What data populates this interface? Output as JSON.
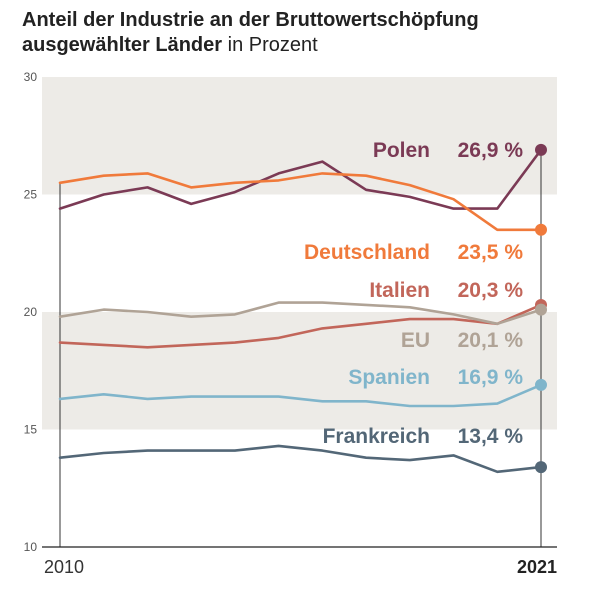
{
  "chart_data": {
    "type": "line",
    "title": "Anteil der Industrie an der Bruttowertschöpfung ausgewählter Länder",
    "subtitle": "in Prozent",
    "x": [
      2010,
      2011,
      2012,
      2013,
      2014,
      2015,
      2016,
      2017,
      2018,
      2019,
      2020,
      2021
    ],
    "x_tick_labels": [
      "2010",
      "2021"
    ],
    "ylim": [
      10,
      30
    ],
    "y_ticks": [
      30,
      25,
      20,
      15,
      10
    ],
    "grid": true,
    "shaded_bands": [
      [
        25,
        30
      ],
      [
        15,
        20
      ]
    ],
    "band_color": "#edebe7",
    "legend_position": "right",
    "series": [
      {
        "name": "Polen",
        "end_label": "26,9 %",
        "color": "#7b3a55",
        "values": [
          24.4,
          25.0,
          25.3,
          24.6,
          25.1,
          25.9,
          26.4,
          25.2,
          24.9,
          24.4,
          24.4,
          26.9
        ]
      },
      {
        "name": "Deutschland",
        "end_label": "23,5 %",
        "color": "#f07a3b",
        "values": [
          25.5,
          25.8,
          25.9,
          25.3,
          25.5,
          25.6,
          25.9,
          25.8,
          25.4,
          24.8,
          23.5,
          23.5
        ]
      },
      {
        "name": "Italien",
        "end_label": "20,3 %",
        "color": "#c2665a",
        "values": [
          18.7,
          18.6,
          18.5,
          18.6,
          18.7,
          18.9,
          19.3,
          19.5,
          19.7,
          19.7,
          19.5,
          20.3
        ]
      },
      {
        "name": "EU",
        "end_label": "20,1 %",
        "color": "#b0a396",
        "values": [
          19.8,
          20.1,
          20.0,
          19.8,
          19.9,
          20.4,
          20.4,
          20.3,
          20.2,
          19.9,
          19.5,
          20.1
        ]
      },
      {
        "name": "Spanien",
        "end_label": "16,9 %",
        "color": "#80b5cb",
        "values": [
          16.3,
          16.5,
          16.3,
          16.4,
          16.4,
          16.4,
          16.2,
          16.2,
          16.0,
          16.0,
          16.1,
          16.9
        ]
      },
      {
        "name": "Frankreich",
        "end_label": "13,4 %",
        "color": "#536777",
        "values": [
          13.8,
          14.0,
          14.1,
          14.1,
          14.1,
          14.3,
          14.1,
          13.8,
          13.7,
          13.9,
          13.2,
          13.4
        ]
      }
    ]
  }
}
